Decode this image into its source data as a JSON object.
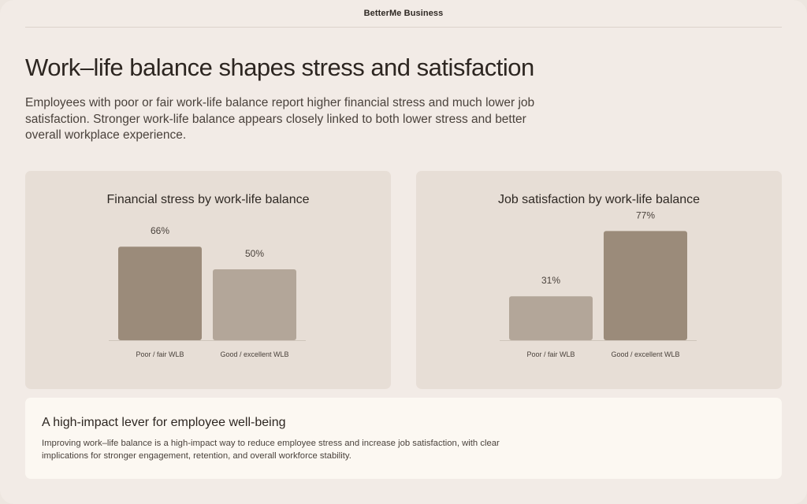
{
  "header": {
    "brand": "BetterMe Business"
  },
  "page": {
    "title": "Work–life balance shapes stress and satisfaction",
    "subtitle": "Employees with poor or fair work-life balance report higher financial stress and much lower job satisfaction. Stronger work-life balance appears closely linked to both lower stress and better overall workplace experience."
  },
  "colors": {
    "dark_bar": "#9b8b7a",
    "light_bar": "#b3a699",
    "card_bg": "#e7ded6",
    "page_bg": "#f2ebe6"
  },
  "chart_data": [
    {
      "type": "bar",
      "title": "Financial stress by work-life balance",
      "categories": [
        "Poor / fair WLB",
        "Good / excellent WLB"
      ],
      "values": [
        66,
        50
      ],
      "value_labels": [
        "66%",
        "50%"
      ],
      "bar_colors": [
        "#9b8b7a",
        "#b3a699"
      ],
      "ylim": [
        0,
        100
      ],
      "grid": false
    },
    {
      "type": "bar",
      "title": "Job satisfaction by work-life balance",
      "categories": [
        "Poor / fair WLB",
        "Good / excellent WLB"
      ],
      "values": [
        31,
        77
      ],
      "value_labels": [
        "31%",
        "77%"
      ],
      "bar_colors": [
        "#b3a699",
        "#9b8b7a"
      ],
      "ylim": [
        0,
        100
      ],
      "grid": false
    }
  ],
  "note": {
    "title": "A high-impact lever for employee well-being",
    "body": "Improving work–life balance is a high-impact way to reduce employee stress and increase job satisfaction, with clear implications for stronger engagement, retention, and overall workforce stability."
  }
}
